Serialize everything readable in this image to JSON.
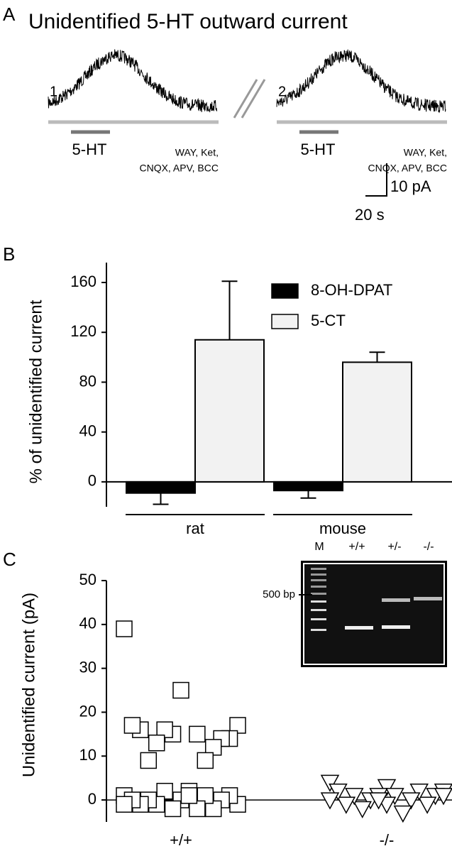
{
  "chart_data": [
    {
      "type": "trace",
      "panel_label": "A",
      "title": "Unidentified 5-HT outward current",
      "traces": [
        {
          "label": "1.",
          "drug": "5-HT",
          "bath": [
            "WAY, Ket,",
            "CNQX, APV, BCC"
          ]
        },
        {
          "label": "2.",
          "drug": "5-HT",
          "bath": [
            "WAY, Ket,",
            "CNQX, APV, BCC"
          ]
        }
      ],
      "scale_bar": {
        "y": "10 pA",
        "x": "20 s"
      }
    },
    {
      "type": "bar",
      "panel_label": "B",
      "ylabel": "% of unidentified current",
      "categories": [
        "rat",
        "mouse"
      ],
      "series": [
        {
          "name": "8-OH-DPAT",
          "color": "#000000",
          "values": [
            -9,
            -7
          ],
          "errors": [
            9,
            6
          ]
        },
        {
          "name": "5-CT",
          "color": "#f2f2f2",
          "values": [
            114,
            96
          ],
          "errors": [
            47,
            8
          ]
        }
      ],
      "ylim": [
        -20,
        160
      ],
      "yticks": [
        0,
        40,
        80,
        120,
        160
      ],
      "legend": "top-right"
    },
    {
      "type": "scatter",
      "panel_label": "C",
      "ylabel": "Unidentified current (pA)",
      "categories": [
        "+/+",
        "-/-"
      ],
      "series": [
        {
          "marker": "square",
          "color": "#ffffff",
          "values": [
            39,
            25,
            17,
            15,
            14,
            16,
            14,
            13,
            12,
            9,
            9,
            16,
            15,
            17,
            2,
            1,
            0,
            -1,
            -2,
            1,
            2,
            0,
            -1,
            -2,
            0,
            1,
            -1,
            -2,
            0,
            1,
            -1
          ]
        },
        {
          "marker": "triangle",
          "color": "#ffffff",
          "values": [
            4,
            3,
            2,
            1,
            1,
            0,
            -1,
            -2,
            2,
            1,
            0,
            -1,
            -3,
            2,
            1,
            0,
            -1,
            1,
            0
          ]
        }
      ],
      "ylim": [
        -5,
        50
      ],
      "yticks": [
        0,
        10,
        20,
        30,
        40,
        50
      ],
      "inset": {
        "lanes": [
          "M",
          "+/+",
          "+/-",
          "-/-"
        ],
        "marker": "500 bp"
      }
    }
  ]
}
